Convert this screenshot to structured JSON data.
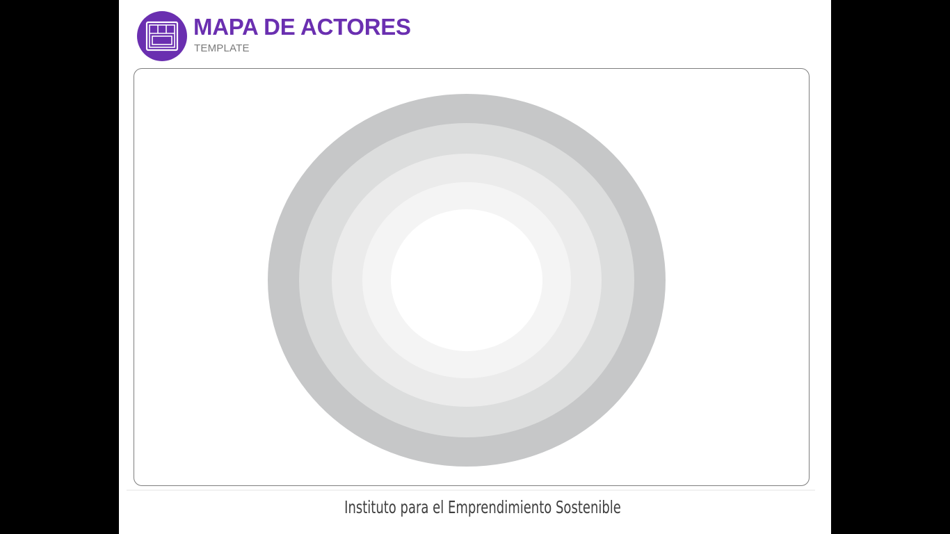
{
  "header": {
    "title": "MAPA DE ACTORES",
    "subtitle": "TEMPLATE",
    "logo_icon": "canvas-grid-icon",
    "accent_color": "#6a2fb0"
  },
  "stakeholder_map": {
    "ring_colors": [
      "#c6c7c8",
      "#dcdddd",
      "#ebebeb",
      "#f4f4f4",
      "#ffffff"
    ]
  },
  "footer": {
    "text": "Instituto para el Emprendimiento Sostenible"
  }
}
